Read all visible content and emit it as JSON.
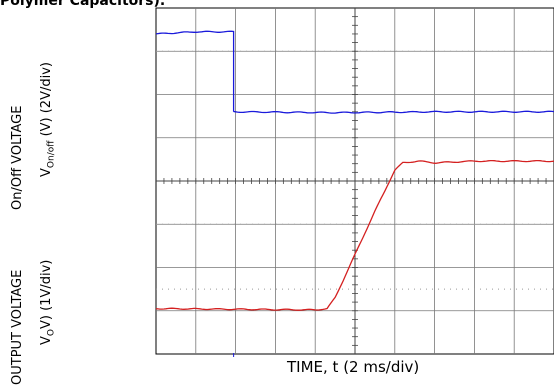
{
  "header": {
    "heading": "Polymer Capacitors)."
  },
  "chart_data": {
    "type": "line",
    "xlabel": "TIME, t (2 ms/div)",
    "upper_axis": {
      "label_main": "On/Off VOLTAGE",
      "label_sub": "V",
      "label_sub_subscript": "On/off",
      "label_sub_suffix": " (V) (2V/div)"
    },
    "lower_axis": {
      "label_main": "OUTPUT VOLTAGE",
      "label_sub": "V",
      "label_sub_subscript": "O",
      "label_sub_suffix": "V) (1V/div)"
    },
    "divisions": {
      "x": 10,
      "y": 8
    },
    "x_scale_ms_per_div": 2,
    "series": [
      {
        "color": "#1a1adb",
        "points_div": [
          [
            0,
            7.4
          ],
          [
            1.0,
            7.45
          ],
          [
            1.95,
            7.45
          ],
          [
            1.95,
            5.6
          ],
          [
            4.5,
            5.58
          ],
          [
            7.0,
            5.6
          ],
          [
            10,
            5.6
          ]
        ]
      },
      {
        "color": "#d42020",
        "points_div": [
          [
            0,
            1.05
          ],
          [
            4.0,
            1.02
          ],
          [
            4.3,
            1.05
          ],
          [
            4.5,
            1.3
          ],
          [
            5.0,
            2.3
          ],
          [
            5.5,
            3.3
          ],
          [
            6.0,
            4.25
          ],
          [
            6.2,
            4.42
          ],
          [
            6.6,
            4.46
          ],
          [
            7.0,
            4.42
          ],
          [
            8.0,
            4.46
          ],
          [
            10,
            4.46
          ]
        ]
      }
    ]
  }
}
